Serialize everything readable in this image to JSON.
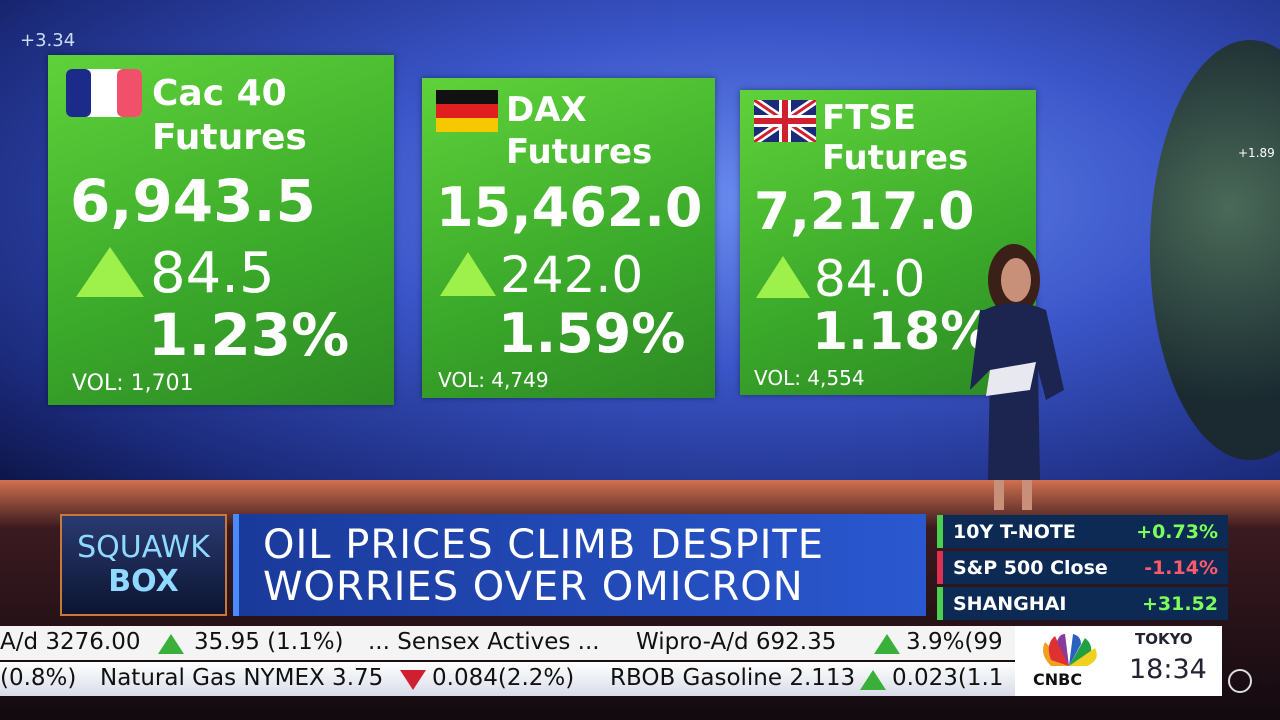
{
  "corner_fragments": {
    "top_left": "+3.34",
    "globe": "+1.89"
  },
  "cards": [
    {
      "title": [
        "Cac 40",
        "Futures"
      ],
      "value": "6,943.5",
      "change": "84.5",
      "percent": "1.23%",
      "volume": "VOL: 1,701"
    },
    {
      "title": [
        "DAX",
        "Futures"
      ],
      "value": "15,462.0",
      "change": "242.0",
      "percent": "1.59%",
      "volume": "VOL: 4,749"
    },
    {
      "title": [
        "FTSE",
        "Futures"
      ],
      "value": "7,217.0",
      "change": "84.0",
      "percent": "1.18%",
      "volume": "VOL: 4,554"
    }
  ],
  "show": {
    "line1": "SQUAWK",
    "line2": "BOX"
  },
  "headline": [
    "OIL PRICES CLIMB DESPITE",
    "WORRIES OVER OMICRON"
  ],
  "sidebar": [
    {
      "name": "10Y T-NOTE",
      "value": "+0.73%"
    },
    {
      "name": "S&P 500 Close",
      "value": "-1.14%"
    },
    {
      "name": "SHANGHAI",
      "value": "+31.52"
    }
  ],
  "ticker": [
    [
      "A/d 3276.00",
      "35.95 (1.1%)",
      "... Sensex Actives ...",
      "Wipro-A/d 692.35",
      "3.9%(99"
    ],
    [
      "(0.8%)",
      "Natural Gas NYMEX 3.75",
      "0.084(2.2%)",
      "RBOB Gasoline 2.113",
      "0.023(1.1"
    ]
  ],
  "network": {
    "logo": "CNBC",
    "city": "TOKYO",
    "time": "18:34"
  }
}
